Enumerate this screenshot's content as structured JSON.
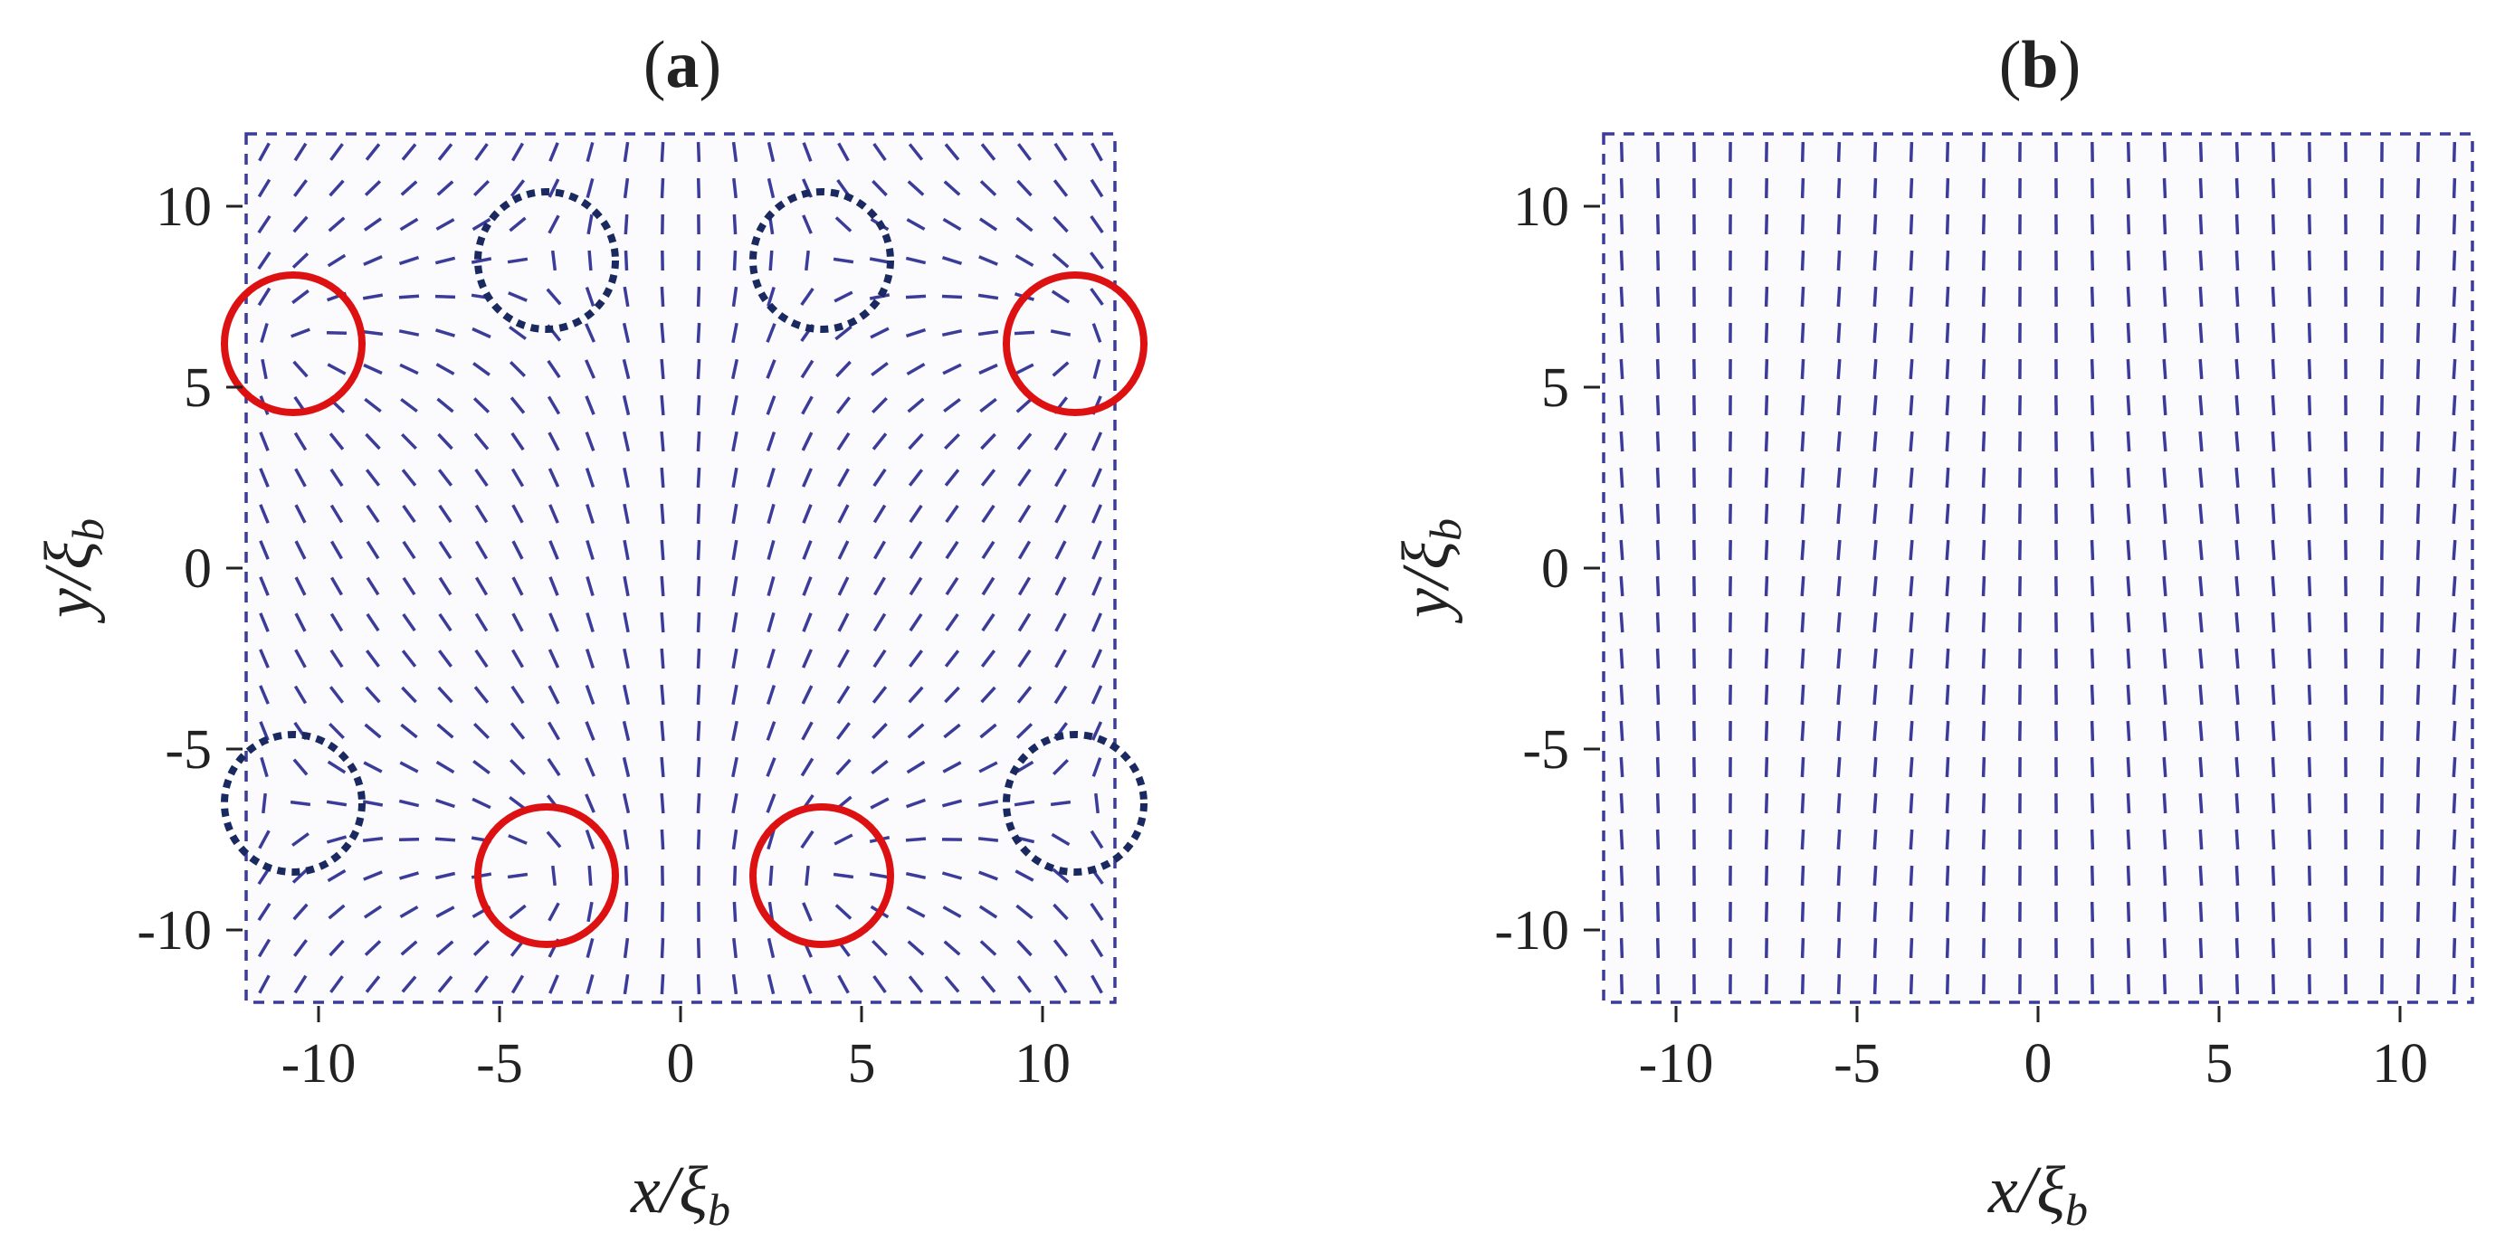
{
  "chart_data": [
    {
      "type": "vector_field",
      "panel": "(a)",
      "panel_letter": "a",
      "xlabel": "x/ξ",
      "xlabel_sub": "b",
      "ylabel": "y/ξ",
      "ylabel_sub": "b",
      "xlim": [
        -12,
        12
      ],
      "ylim": [
        -12,
        12
      ],
      "xticks": [
        -10,
        -5,
        0,
        5,
        10
      ],
      "yticks": [
        -10,
        -5,
        0,
        5,
        10
      ],
      "xtick_labels": [
        "-10",
        "-5",
        "0",
        "5",
        "10"
      ],
      "ytick_labels": [
        "-10",
        "-5",
        "0",
        "5",
        "10"
      ],
      "grid": false,
      "field": "director field with defects",
      "positive_defects": [
        {
          "x": -10.7,
          "y": 6.2
        },
        {
          "x": 10.9,
          "y": 6.2
        },
        {
          "x": -3.7,
          "y": -8.5
        },
        {
          "x": 3.9,
          "y": -8.5
        }
      ],
      "negative_defects": [
        {
          "x": -3.7,
          "y": 8.5
        },
        {
          "x": 3.9,
          "y": 8.5
        },
        {
          "x": -10.7,
          "y": -6.5
        },
        {
          "x": 10.9,
          "y": -6.5
        }
      ],
      "colors": {
        "field": "#3b3b9a",
        "positive": "#dd1111",
        "negative": "#1a2a60"
      }
    },
    {
      "type": "vector_field",
      "panel": "(b)",
      "panel_letter": "b",
      "xlabel": "x/ξ",
      "xlabel_sub": "b",
      "ylabel": "y/ξ",
      "ylabel_sub": "b",
      "xlim": [
        -12,
        12
      ],
      "ylim": [
        -12,
        12
      ],
      "xticks": [
        -10,
        -5,
        0,
        5,
        10
      ],
      "yticks": [
        -10,
        -5,
        0,
        5,
        10
      ],
      "xtick_labels": [
        "-10",
        "-5",
        "0",
        "5",
        "10"
      ],
      "ytick_labels": [
        "-10",
        "-5",
        "0",
        "5",
        "10"
      ],
      "grid": false,
      "field": "nearly uniform vertical director field",
      "positive_defects": [],
      "negative_defects": [],
      "colors": {
        "field": "#3b3b9a"
      }
    }
  ]
}
